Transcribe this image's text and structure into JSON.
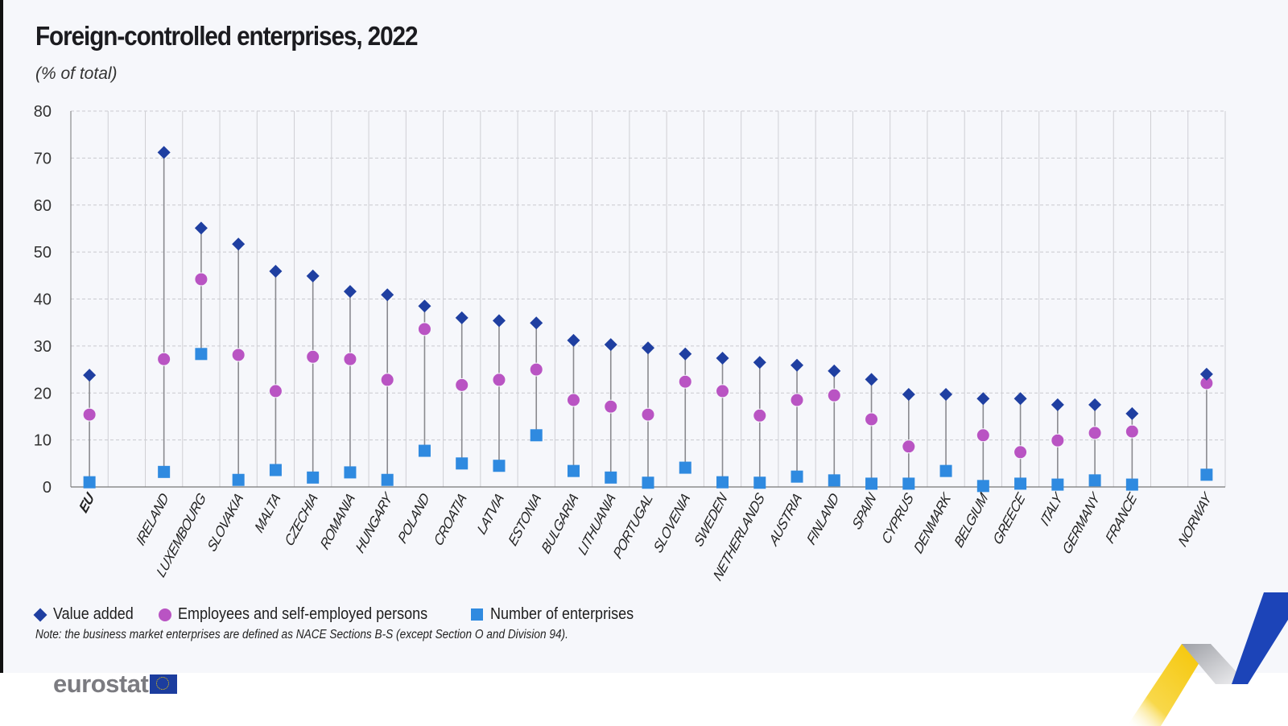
{
  "header": {
    "title": "Foreign-controlled enterprises, 2022",
    "subtitle": "(% of total)"
  },
  "legend": [
    {
      "name": "Value added",
      "symbol": "diamond",
      "color": "#1f3fa1"
    },
    {
      "name": "Employees and self-employed persons",
      "symbol": "circle",
      "color": "#b954c3"
    },
    {
      "name": "Number of enterprises",
      "symbol": "square",
      "color": "#2f8ae0"
    }
  ],
  "note": "Note: the business market enterprises are defined as NACE Sections B-S (except Section O and Division 94).",
  "branding": {
    "logo_text": "eurostat"
  },
  "chart_data": {
    "type": "scatter",
    "subtype": "dot-range (lollipop) by category",
    "title": "Foreign-controlled enterprises, 2022",
    "subtitle": "(% of total)",
    "xlabel": "",
    "ylabel": "",
    "ylim": [
      0,
      80
    ],
    "yticks": [
      0,
      10,
      20,
      30,
      40,
      50,
      60,
      70,
      80
    ],
    "grid": "horizontal dashed, vertical solid category separators",
    "legend_position": "bottom-left",
    "categories": [
      "EU",
      "",
      "IRELAND",
      "LUXEMBOURG",
      "SLOVAKIA",
      "MALTA",
      "CZECHIA",
      "ROMANIA",
      "HUNGARY",
      "POLAND",
      "CROATIA",
      "LATVIA",
      "ESTONIA",
      "BULGARIA",
      "LITHUANIA",
      "PORTUGAL",
      "SLOVENIA",
      "SWEDEN",
      "NETHERLANDS",
      "AUSTRIA",
      "FINLAND",
      "SPAIN",
      "CYPRUS",
      "DENMARK",
      "BELGIUM",
      "GREECE",
      "ITALY",
      "GERMANY",
      "FRANCE",
      "",
      "NORWAY"
    ],
    "series": [
      {
        "name": "Value added",
        "symbol": "diamond",
        "color": "#1f3fa1",
        "values": [
          23.8,
          null,
          71.2,
          55.1,
          51.7,
          45.9,
          44.9,
          41.6,
          40.9,
          38.5,
          36.0,
          35.4,
          34.9,
          31.2,
          30.3,
          29.6,
          28.3,
          27.4,
          26.5,
          25.9,
          24.7,
          22.9,
          19.7,
          19.7,
          18.8,
          18.8,
          17.5,
          17.5,
          15.6,
          null,
          24.0
        ]
      },
      {
        "name": "Employees and self-employed persons",
        "symbol": "circle",
        "color": "#b954c3",
        "values": [
          15.4,
          null,
          27.2,
          44.2,
          28.1,
          20.4,
          27.7,
          27.2,
          22.8,
          33.6,
          21.7,
          22.8,
          25.0,
          18.5,
          17.1,
          15.4,
          22.4,
          20.4,
          15.2,
          18.5,
          19.5,
          14.4,
          8.6,
          null,
          11.0,
          7.4,
          9.9,
          11.5,
          11.8,
          null,
          22.1
        ]
      },
      {
        "name": "Number of enterprises",
        "symbol": "square",
        "color": "#2f8ae0",
        "values": [
          1.0,
          null,
          3.2,
          28.3,
          1.5,
          3.6,
          2.0,
          3.1,
          1.5,
          7.7,
          5.0,
          4.5,
          11.0,
          3.4,
          2.0,
          0.9,
          4.1,
          1.0,
          0.9,
          2.2,
          1.4,
          0.7,
          0.7,
          3.4,
          0.2,
          0.7,
          0.5,
          1.4,
          0.5,
          null,
          2.6
        ]
      }
    ],
    "bold_categories": [
      "EU"
    ]
  }
}
